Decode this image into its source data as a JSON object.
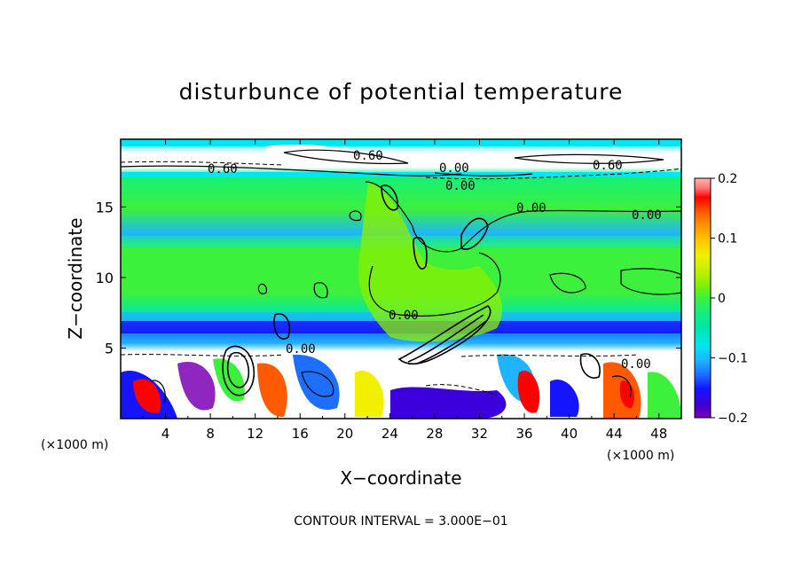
{
  "chart_data": {
    "type": "heatmap",
    "title": "disturbunce of potential temperature",
    "xlabel": "X−coordinate",
    "ylabel": "Z−coordinate",
    "x_unit": "(×1000 m)",
    "z_unit": "(×1000 m)",
    "xlim": [
      0,
      50
    ],
    "ylim": [
      0,
      19.8
    ],
    "x_ticks": [
      "4",
      "8",
      "12",
      "16",
      "20",
      "24",
      "28",
      "32",
      "36",
      "40",
      "44",
      "48"
    ],
    "y_ticks": [
      "5",
      "10",
      "15"
    ],
    "colorbar": {
      "range": [
        -0.2,
        0.2
      ],
      "tick_labels": [
        "0.2",
        "0.1",
        "0",
        "−0.1",
        "−0.2"
      ],
      "colors": [
        "#7a00b4",
        "#3c00dc",
        "#1414ff",
        "#1e6eff",
        "#1eb4ff",
        "#00e6f0",
        "#00e6aa",
        "#14f07a",
        "#3cf03c",
        "#8cf000",
        "#c8f000",
        "#f0f000",
        "#ffc800",
        "#ff9600",
        "#ff5a00",
        "#ff0000",
        "#ff7878",
        "#ffb4b4"
      ]
    },
    "contour_labels": [
      "0.60",
      "0.60",
      "0.00",
      "0.00",
      "0.60",
      "0.00",
      "0.00",
      "0.00",
      "0.00",
      "0.00"
    ],
    "footer": "CONTOUR INTERVAL = 3.000E−01"
  }
}
